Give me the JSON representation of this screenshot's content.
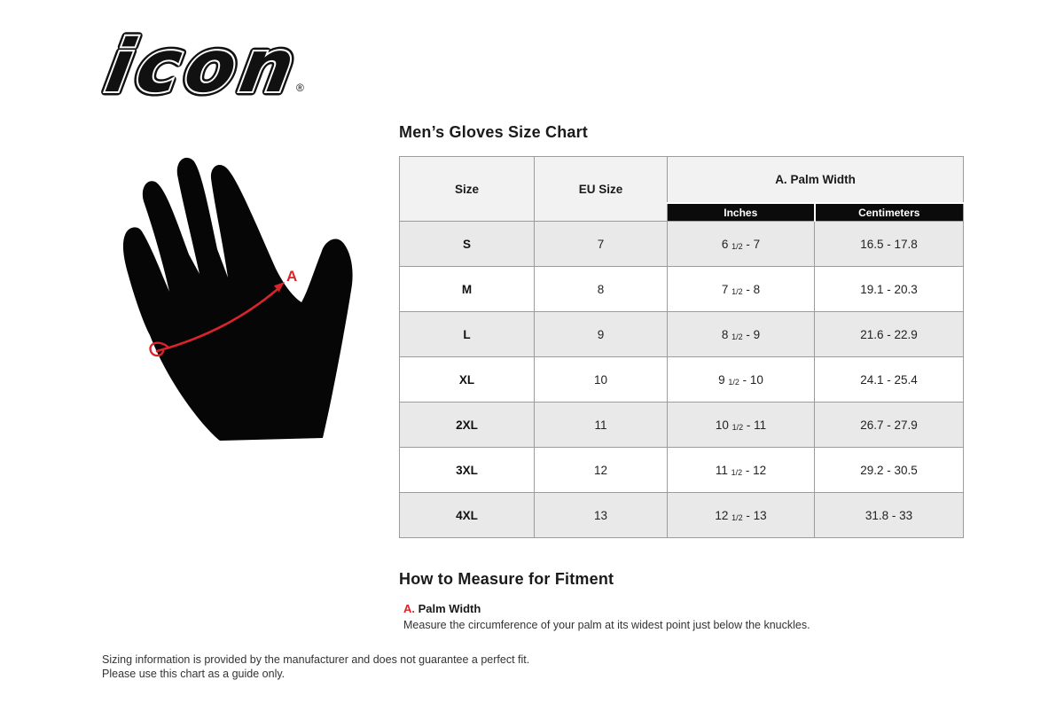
{
  "page": {
    "brand": "icon",
    "registered_mark": "®"
  },
  "size_chart": {
    "title": "Men’s Gloves Size Chart",
    "table": {
      "headers": {
        "size": "Size",
        "eu_size": "EU Size",
        "palm_width": "A. Palm Width",
        "inches": "Inches",
        "centimeters": "Centimeters"
      },
      "rows": [
        {
          "size": "S",
          "eu": "7",
          "inches": "6 1/2 - 7",
          "cm": "16.5 - 17.8"
        },
        {
          "size": "M",
          "eu": "8",
          "inches": "7 1/2 - 8",
          "cm": "19.1 - 20.3"
        },
        {
          "size": "L",
          "eu": "9",
          "inches": "8 1/2 - 9",
          "cm": "21.6 - 22.9"
        },
        {
          "size": "XL",
          "eu": "10",
          "inches": "9 1/2 - 10",
          "cm": "24.1 - 25.4"
        },
        {
          "size": "2XL",
          "eu": "11",
          "inches": "10 1/2 - 11",
          "cm": "26.7 - 27.9"
        },
        {
          "size": "3XL",
          "eu": "12",
          "inches": "11 1/2 - 12",
          "cm": "29.2 - 30.5"
        },
        {
          "size": "4XL",
          "eu": "13",
          "inches": "12 1/2 - 13",
          "cm": "31.8 - 33"
        }
      ]
    }
  },
  "measure": {
    "heading": "How to Measure for Fitment",
    "label_letter": "A.",
    "label": "Palm Width",
    "description": "Measure the circumference of your palm at its widest point just below the knuckles."
  },
  "hand_diagram": {
    "marker": "A"
  },
  "footer": {
    "line1": "Sizing information is provided by the manufacturer and does not guarantee a perfect fit.",
    "line2": "Please use this chart as a guide only."
  },
  "colors": {
    "accent_red": "#d8252b",
    "subheader_black": "#0b0b0b",
    "header_bg": "#f2f2f2",
    "row_alt_bg": "#e9e9e9",
    "table_border": "#9c9c9c"
  }
}
